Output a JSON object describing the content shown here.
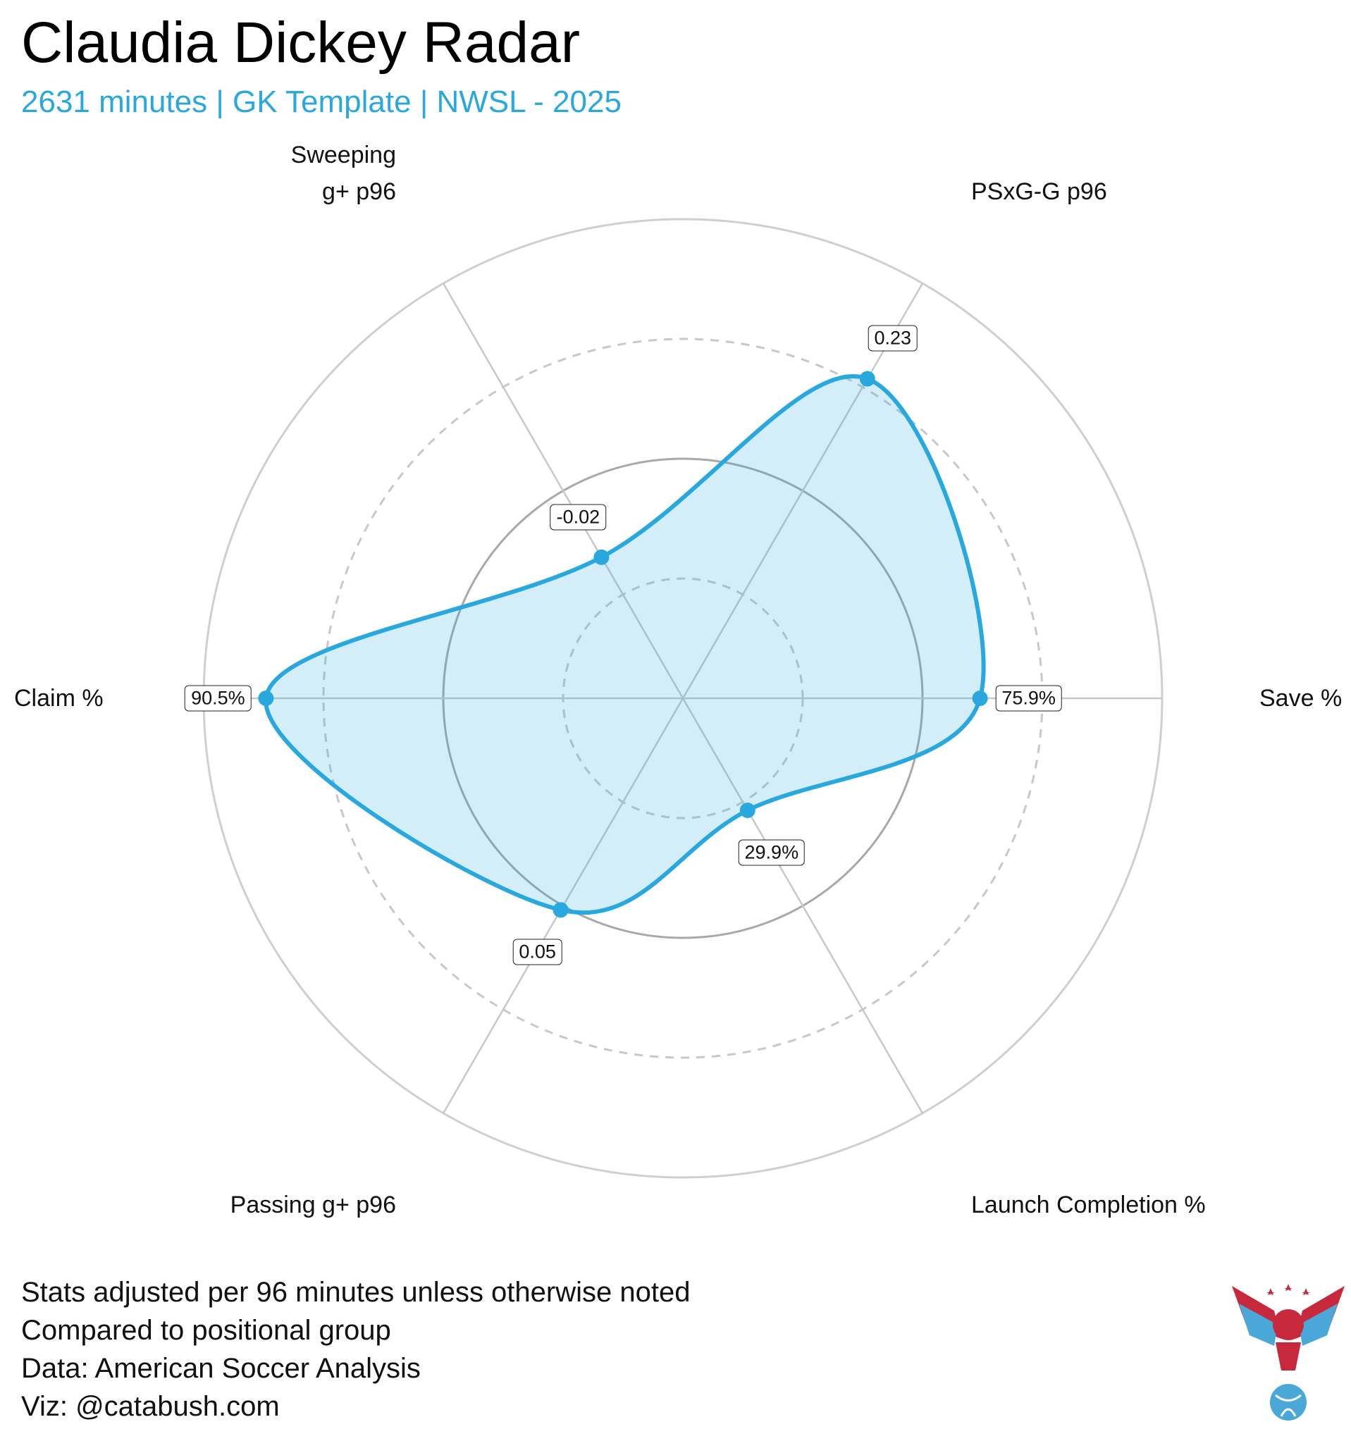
{
  "chart_data": {
    "type": "radar",
    "title": "Claudia Dickey Radar",
    "subtitle": "2631 minutes | GK Template | NWSL - 2025",
    "categories": [
      "Save %",
      "PSxG-G p96",
      "Sweeping g+ p96",
      "Claim %",
      "Passing g+ p96",
      "Launch Completion %"
    ],
    "series": [
      {
        "name": "Claudia Dickey",
        "color": "#29a8e0",
        "values": [
          62,
          77,
          34,
          87,
          51,
          27
        ]
      }
    ],
    "stat_labels": [
      "75.9%",
      "0.23",
      "-0.02",
      "90.5%",
      "0.05",
      "29.9%"
    ],
    "ylim": [
      0,
      100
    ],
    "yticks": [
      25,
      50,
      75,
      100
    ],
    "footnotes": [
      "Stats adjusted per 96 minutes unless otherwise noted",
      "Compared to positional group",
      "Data: American Soccer Analysis",
      "Viz: @catabush.com"
    ]
  }
}
